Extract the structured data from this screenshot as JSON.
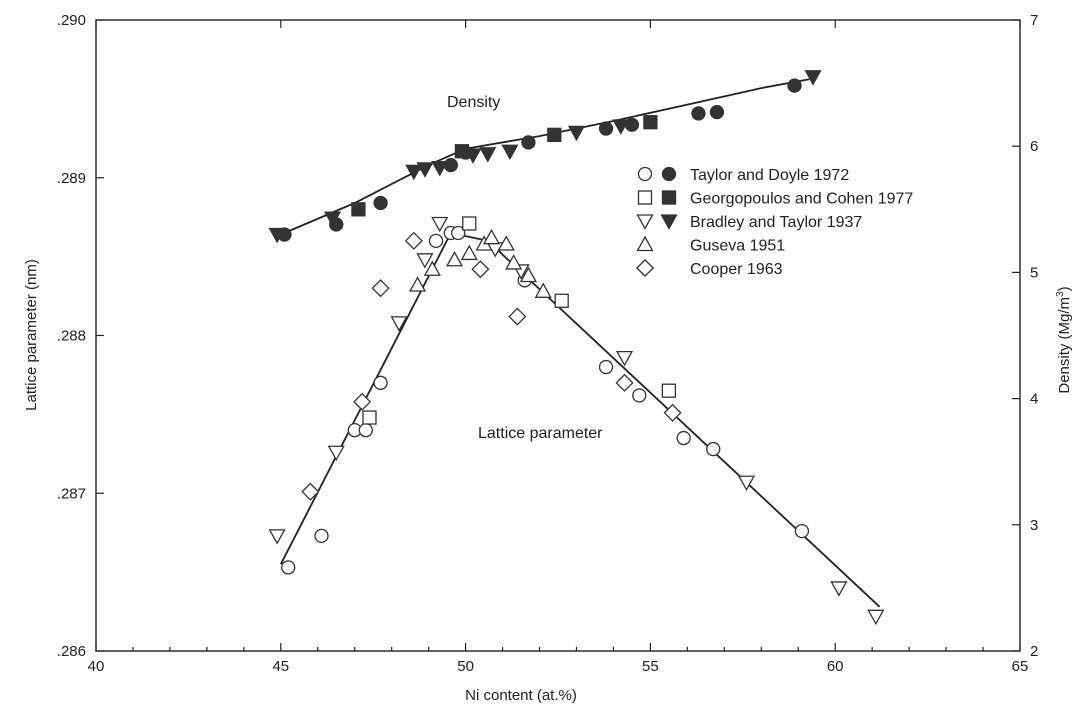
{
  "chart_data": {
    "type": "scatter",
    "xlabel": "Ni content (at.%)",
    "ylabel_left": "Lattice parameter (nm)",
    "ylabel_right_parts": [
      "Density (Mg/m",
      "3",
      ")"
    ],
    "xlim": [
      40,
      65
    ],
    "ylim_left": [
      0.286,
      0.29
    ],
    "ylim_right": [
      2,
      7
    ],
    "x_ticks": [
      40,
      45,
      50,
      55,
      60,
      65
    ],
    "x_tick_labels": [
      "40",
      "45",
      "50",
      "55",
      "60",
      "65"
    ],
    "y_left_ticks": [
      0.286,
      0.287,
      0.288,
      0.289,
      0.29
    ],
    "y_left_tick_labels": [
      ".286",
      ".287",
      ".288",
      ".289",
      ".290"
    ],
    "y_right_ticks": [
      2,
      3,
      4,
      5,
      6,
      7
    ],
    "y_right_tick_labels": [
      "2",
      "3",
      "4",
      "5",
      "6",
      "7"
    ],
    "annotations": {
      "density": "Density",
      "lattice": "Lattice parameter"
    },
    "legend": {
      "placement": "upper-right-inside",
      "entries": [
        {
          "label": "Taylor and Doyle 1972",
          "open_marker": "circle",
          "filled_marker": "circle"
        },
        {
          "label": "Georgopoulos and Cohen 1977",
          "open_marker": "square",
          "filled_marker": "square"
        },
        {
          "label": "Bradley and Taylor 1937",
          "open_marker": "triangle-down",
          "filled_marker": "triangle-down"
        },
        {
          "label": "Guseva 1951",
          "open_marker": "triangle-up",
          "filled_marker": null
        },
        {
          "label": "Cooper 1963",
          "open_marker": "diamond",
          "filled_marker": null
        }
      ]
    },
    "density_fit": {
      "x": [
        45.0,
        47.0,
        49.0,
        50.0,
        52.0,
        54.0,
        56.0,
        58.0,
        59.3
      ],
      "y": [
        5.3,
        5.55,
        5.85,
        5.98,
        6.08,
        6.2,
        6.33,
        6.46,
        6.53
      ]
    },
    "lattice_fit": [
      {
        "x": [
          45.0,
          49.6
        ],
        "y": [
          0.28655,
          0.28865
        ]
      },
      {
        "x": [
          49.6,
          50.6,
          61.2
        ],
        "y": [
          0.28865,
          0.2886,
          0.28628
        ]
      }
    ],
    "series": [
      {
        "name": "Taylor and Doyle 1972",
        "axis": "density",
        "marker": "circle",
        "filled": true,
        "points": [
          [
            45.1,
            5.3
          ],
          [
            46.5,
            5.38
          ],
          [
            47.7,
            5.55
          ],
          [
            49.6,
            5.85
          ],
          [
            50.0,
            5.95
          ],
          [
            51.7,
            6.03
          ],
          [
            53.8,
            6.14
          ],
          [
            54.5,
            6.17
          ],
          [
            56.3,
            6.26
          ],
          [
            56.8,
            6.27
          ],
          [
            58.9,
            6.48
          ]
        ]
      },
      {
        "name": "Georgopoulos and Cohen 1977",
        "axis": "density",
        "marker": "square",
        "filled": true,
        "points": [
          [
            47.1,
            5.5
          ],
          [
            49.9,
            5.96
          ],
          [
            52.4,
            6.09
          ],
          [
            55.0,
            6.19
          ]
        ]
      },
      {
        "name": "Bradley and Taylor 1937",
        "axis": "density",
        "marker": "triangle-down",
        "filled": true,
        "points": [
          [
            44.9,
            5.3
          ],
          [
            46.4,
            5.43
          ],
          [
            48.6,
            5.8
          ],
          [
            48.9,
            5.82
          ],
          [
            49.3,
            5.83
          ],
          [
            50.2,
            5.93
          ],
          [
            50.6,
            5.94
          ],
          [
            51.2,
            5.96
          ],
          [
            53.0,
            6.11
          ],
          [
            54.2,
            6.16
          ],
          [
            59.4,
            6.55
          ]
        ]
      },
      {
        "name": "Taylor and Doyle 1972",
        "axis": "lattice",
        "marker": "circle",
        "filled": false,
        "points": [
          [
            45.2,
            0.28653
          ],
          [
            46.1,
            0.28673
          ],
          [
            47.0,
            0.2874
          ],
          [
            47.3,
            0.2874
          ],
          [
            47.7,
            0.2877
          ],
          [
            49.2,
            0.2886
          ],
          [
            49.6,
            0.28865
          ],
          [
            49.8,
            0.28865
          ],
          [
            51.6,
            0.28835
          ],
          [
            53.8,
            0.2878
          ],
          [
            54.7,
            0.28762
          ],
          [
            55.9,
            0.28735
          ],
          [
            56.7,
            0.28728
          ],
          [
            59.1,
            0.28676
          ]
        ]
      },
      {
        "name": "Georgopoulos and Cohen 1977",
        "axis": "lattice",
        "marker": "square",
        "filled": false,
        "points": [
          [
            47.4,
            0.28748
          ],
          [
            50.1,
            0.28871
          ],
          [
            52.6,
            0.28822
          ],
          [
            55.5,
            0.28765
          ]
        ]
      },
      {
        "name": "Bradley and Taylor 1937",
        "axis": "lattice",
        "marker": "triangle-down",
        "filled": false,
        "points": [
          [
            44.9,
            0.28673
          ],
          [
            46.5,
            0.28726
          ],
          [
            48.2,
            0.28808
          ],
          [
            48.9,
            0.28848
          ],
          [
            49.3,
            0.28871
          ],
          [
            50.8,
            0.28855
          ],
          [
            51.5,
            0.28841
          ],
          [
            54.3,
            0.28786
          ],
          [
            57.6,
            0.28707
          ],
          [
            60.1,
            0.2864
          ],
          [
            61.1,
            0.28622
          ]
        ]
      },
      {
        "name": "Guseva 1951",
        "axis": "lattice",
        "marker": "triangle-up",
        "filled": false,
        "points": [
          [
            48.7,
            0.28832
          ],
          [
            49.1,
            0.28842
          ],
          [
            49.7,
            0.28848
          ],
          [
            50.1,
            0.28852
          ],
          [
            50.5,
            0.28858
          ],
          [
            50.7,
            0.28862
          ],
          [
            51.1,
            0.28858
          ],
          [
            51.3,
            0.28846
          ],
          [
            51.7,
            0.28838
          ],
          [
            52.1,
            0.28828
          ]
        ]
      },
      {
        "name": "Cooper 1963",
        "axis": "lattice",
        "marker": "diamond",
        "filled": false,
        "points": [
          [
            45.8,
            0.28701
          ],
          [
            47.2,
            0.28758
          ],
          [
            47.7,
            0.2883
          ],
          [
            48.6,
            0.2886
          ],
          [
            50.4,
            0.28842
          ],
          [
            51.4,
            0.28812
          ],
          [
            54.3,
            0.2877
          ],
          [
            55.6,
            0.28751
          ]
        ]
      }
    ]
  }
}
